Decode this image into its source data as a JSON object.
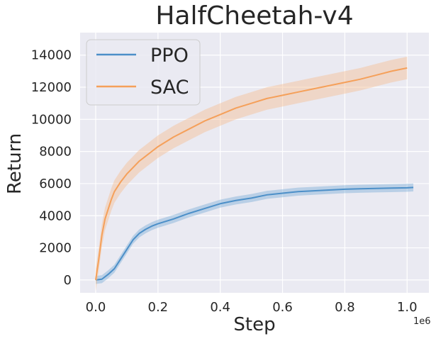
{
  "chart_data": {
    "type": "line",
    "title": "HalfCheetah-v4",
    "xlabel": "Step",
    "ylabel": "Return",
    "x_scale_label": "1e6",
    "x_ticks": [
      "0.0",
      "0.2",
      "0.4",
      "0.6",
      "0.8",
      "1.0"
    ],
    "y_ticks": [
      "0",
      "2000",
      "4000",
      "6000",
      "8000",
      "10000",
      "12000",
      "14000"
    ],
    "xlim": [
      -0.05,
      1.07
    ],
    "ylim": [
      -800,
      15400
    ],
    "grid": true,
    "legend_position": "top-left",
    "series": [
      {
        "name": "PPO",
        "color": "#4c8fc8",
        "band_color": "#7fafd6",
        "x": [
          0.0,
          0.02,
          0.04,
          0.06,
          0.08,
          0.1,
          0.12,
          0.14,
          0.16,
          0.18,
          0.2,
          0.25,
          0.3,
          0.35,
          0.4,
          0.45,
          0.5,
          0.55,
          0.6,
          0.65,
          0.7,
          0.75,
          0.8,
          0.85,
          0.9,
          0.95,
          1.0,
          1.02
        ],
        "y": [
          0,
          50,
          350,
          700,
          1300,
          1900,
          2500,
          2900,
          3150,
          3350,
          3500,
          3800,
          4150,
          4450,
          4750,
          4950,
          5100,
          5300,
          5400,
          5500,
          5550,
          5600,
          5650,
          5680,
          5700,
          5720,
          5740,
          5760
        ],
        "band": 250
      },
      {
        "name": "SAC",
        "color": "#f5a05a",
        "band_color": "#f7be92",
        "x": [
          0.0,
          0.01,
          0.02,
          0.03,
          0.04,
          0.05,
          0.06,
          0.08,
          0.1,
          0.12,
          0.14,
          0.16,
          0.18,
          0.2,
          0.25,
          0.3,
          0.35,
          0.4,
          0.45,
          0.5,
          0.55,
          0.6,
          0.65,
          0.7,
          0.75,
          0.8,
          0.85,
          0.9,
          0.95,
          1.0
        ],
        "y": [
          0,
          1300,
          2800,
          3800,
          4400,
          5000,
          5500,
          6100,
          6600,
          7000,
          7400,
          7700,
          8000,
          8300,
          8900,
          9400,
          9900,
          10300,
          10700,
          11000,
          11300,
          11500,
          11700,
          11900,
          12100,
          12300,
          12500,
          12750,
          13000,
          13200
        ],
        "band": 700
      }
    ]
  }
}
